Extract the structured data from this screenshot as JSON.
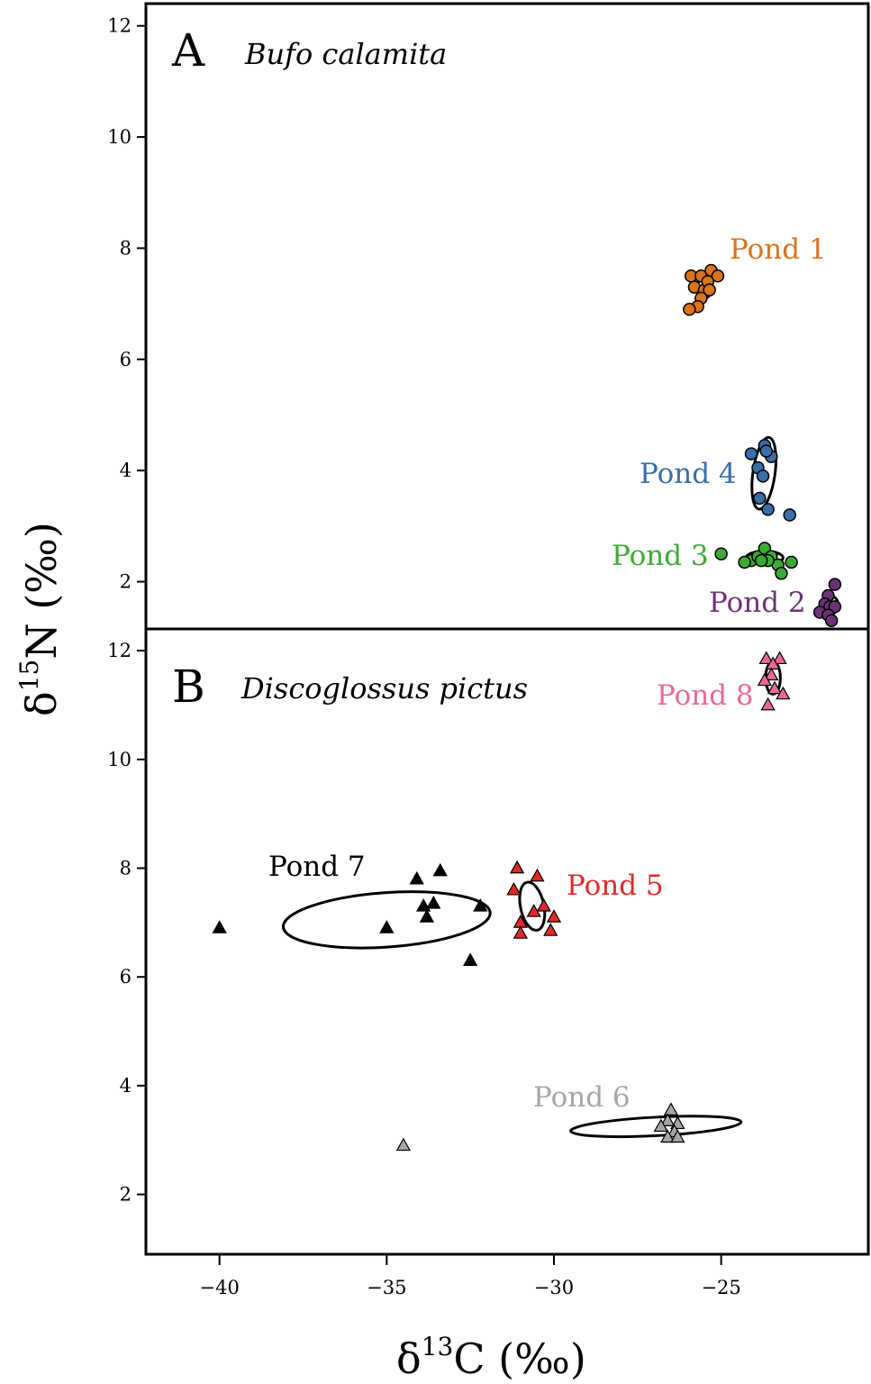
{
  "chart_data": [
    {
      "type": "scatter",
      "panel": "A",
      "title": "Bufo calamita",
      "xlabel": "δ13C (‰)",
      "ylabel": "δ15N (‰)",
      "xlim": [
        -42.2,
        -20.6
      ],
      "ylim": [
        1.15,
        12.4
      ],
      "y_ticks": [
        2,
        4,
        6,
        8,
        10,
        12
      ],
      "groups": [
        {
          "name": "Pond 1",
          "color": "#D9731C",
          "marker": "circle",
          "points": [
            [
              -25.9,
              7.5
            ],
            [
              -25.6,
              7.5
            ],
            [
              -25.3,
              7.6
            ],
            [
              -25.1,
              7.5
            ],
            [
              -25.8,
              7.3
            ],
            [
              -25.5,
              7.25
            ],
            [
              -25.4,
              7.4
            ],
            [
              -25.6,
              7.1
            ],
            [
              -25.7,
              6.95
            ],
            [
              -25.95,
              6.9
            ],
            [
              -25.35,
              7.25
            ]
          ],
          "ellipse": {
            "cx": -25.5,
            "cy": 7.28,
            "rx": 0.22,
            "ry": 0.18,
            "rotation": 0
          }
        },
        {
          "name": "Pond 4",
          "color": "#3A6EA8",
          "marker": "circle",
          "points": [
            [
              -23.7,
              4.45
            ],
            [
              -24.1,
              4.3
            ],
            [
              -23.9,
              4.05
            ],
            [
              -23.5,
              4.25
            ],
            [
              -23.75,
              3.9
            ],
            [
              -23.85,
              3.5
            ],
            [
              -23.6,
              3.3
            ],
            [
              -22.95,
              3.2
            ],
            [
              -23.65,
              4.35
            ]
          ],
          "ellipse": {
            "cx": -23.72,
            "cy": 3.95,
            "rx": 0.33,
            "ry": 0.65,
            "rotation": 8
          }
        },
        {
          "name": "Pond 3",
          "color": "#3DAA35",
          "marker": "circle",
          "points": [
            [
              -25.0,
              2.5
            ],
            [
              -24.1,
              2.38
            ],
            [
              -23.9,
              2.45
            ],
            [
              -23.7,
              2.6
            ],
            [
              -23.5,
              2.45
            ],
            [
              -23.3,
              2.3
            ],
            [
              -23.2,
              2.15
            ],
            [
              -22.9,
              2.35
            ],
            [
              -23.6,
              2.38
            ],
            [
              -24.3,
              2.35
            ],
            [
              -23.8,
              2.38
            ]
          ],
          "ellipse": {
            "cx": -23.7,
            "cy": 2.43,
            "rx": 0.55,
            "ry": 0.12,
            "rotation": 0
          }
        },
        {
          "name": "Pond 2",
          "color": "#6B3275",
          "marker": "circle",
          "points": [
            [
              -21.6,
              1.95
            ],
            [
              -21.8,
              1.75
            ],
            [
              -21.9,
              1.6
            ],
            [
              -21.75,
              1.55
            ],
            [
              -21.6,
              1.55
            ],
            [
              -22.05,
              1.45
            ],
            [
              -21.8,
              1.4
            ],
            [
              -21.7,
              1.3
            ]
          ],
          "ellipse": {
            "cx": -21.75,
            "cy": 1.58,
            "rx": 0.25,
            "ry": 0.17,
            "rotation": 0
          }
        }
      ]
    },
    {
      "type": "scatter",
      "panel": "B",
      "title": "Discoglossus pictus",
      "xlabel": "δ13C (‰)",
      "ylabel": "δ15N (‰)",
      "xlim": [
        -42.2,
        -20.6
      ],
      "ylim": [
        0.9,
        12.4
      ],
      "x_ticks": [
        -40,
        -35,
        -30,
        -25
      ],
      "y_ticks": [
        2,
        4,
        6,
        8,
        10,
        12
      ],
      "groups": [
        {
          "name": "Pond 8",
          "color": "#E96A90",
          "marker": "triangle",
          "points": [
            [
              -23.65,
              11.85
            ],
            [
              -23.25,
              11.85
            ],
            [
              -23.45,
              11.75
            ],
            [
              -23.5,
              11.55
            ],
            [
              -23.7,
              11.45
            ],
            [
              -23.4,
              11.3
            ],
            [
              -23.15,
              11.2
            ],
            [
              -23.6,
              11.0
            ]
          ],
          "ellipse": {
            "cx": -23.45,
            "cy": 11.5,
            "rx": 0.22,
            "ry": 0.3,
            "rotation": 0
          }
        },
        {
          "name": "Pond 7",
          "color": "#000000",
          "marker": "triangle",
          "points": [
            [
              -40.0,
              6.9
            ],
            [
              -35.0,
              6.9
            ],
            [
              -34.1,
              7.8
            ],
            [
              -33.4,
              7.95
            ],
            [
              -33.6,
              7.35
            ],
            [
              -33.8,
              7.1
            ],
            [
              -33.9,
              7.3
            ],
            [
              -32.2,
              7.3
            ],
            [
              -32.5,
              6.3
            ]
          ],
          "ellipse": {
            "cx": -35.0,
            "cy": 7.05,
            "rx": 3.1,
            "ry": 0.5,
            "rotation": -4
          }
        },
        {
          "name": "Pond 5",
          "color": "#E02A2A",
          "marker": "triangle",
          "points": [
            [
              -31.1,
              8.0
            ],
            [
              -30.5,
              7.85
            ],
            [
              -31.2,
              7.6
            ],
            [
              -30.6,
              7.2
            ],
            [
              -30.3,
              7.3
            ],
            [
              -31.0,
              7.0
            ],
            [
              -30.0,
              7.1
            ],
            [
              -31.0,
              6.8
            ],
            [
              -30.1,
              6.85
            ]
          ],
          "ellipse": {
            "cx": -30.65,
            "cy": 7.3,
            "rx": 0.35,
            "ry": 0.45,
            "rotation": -12
          }
        },
        {
          "name": "Pond 6",
          "color": "#A6A6A6",
          "marker": "triangle",
          "points": [
            [
              -34.5,
              2.9
            ],
            [
              -26.5,
              3.55
            ],
            [
              -26.6,
              3.35
            ],
            [
              -26.3,
              3.3
            ],
            [
              -26.8,
              3.25
            ],
            [
              -26.4,
              3.15
            ],
            [
              -26.6,
              3.05
            ],
            [
              -26.3,
              3.05
            ]
          ],
          "ellipse": {
            "cx": -26.95,
            "cy": 3.25,
            "rx": 2.55,
            "ry": 0.17,
            "rotation": -3
          }
        }
      ]
    }
  ],
  "labels": {
    "panel_a_letter": "A",
    "panel_a_species": "Bufo calamita",
    "panel_b_letter": "B",
    "panel_b_species": "Discoglossus pictus",
    "x_axis_delta": "δ",
    "x_axis_sup": "13",
    "x_axis_rest": "C (‰)",
    "y_axis_delta": "δ",
    "y_axis_sup": "15",
    "y_axis_rest": "N (‰)"
  }
}
